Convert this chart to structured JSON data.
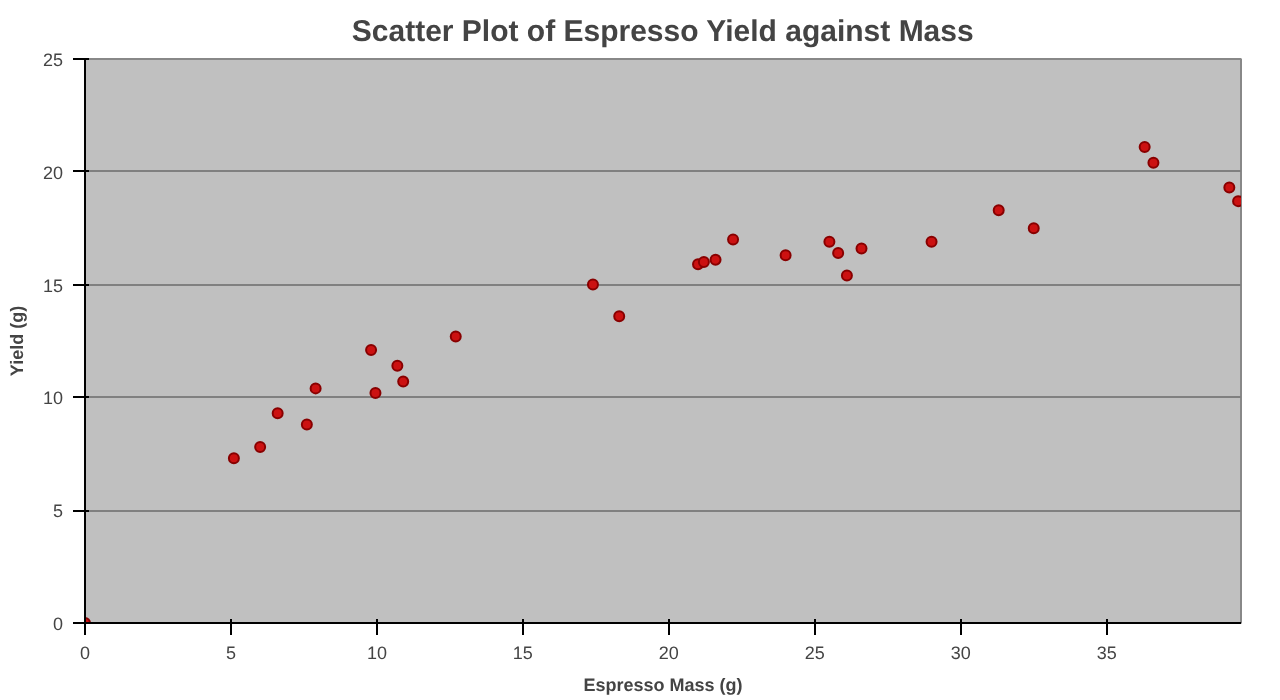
{
  "chart_data": {
    "type": "scatter",
    "title": "Scatter Plot of Espresso Yield against Mass",
    "xlabel": "Espresso Mass (g)",
    "ylabel": "Yield (g)",
    "x": [
      0,
      5.1,
      6.0,
      6.6,
      7.6,
      7.9,
      9.8,
      9.95,
      10.7,
      10.9,
      12.7,
      17.4,
      18.3,
      21.0,
      21.2,
      21.6,
      22.2,
      24.0,
      25.5,
      25.8,
      26.1,
      26.6,
      29.0,
      31.3,
      32.5,
      36.3,
      36.6,
      39.2,
      39.5
    ],
    "series": [
      {
        "color": "#cc1111",
        "values": [
          0,
          7.3,
          7.8,
          9.3,
          8.8,
          10.4,
          12.1,
          10.2,
          11.4,
          10.7,
          12.7,
          15.0,
          13.6,
          15.9,
          16.0,
          16.1,
          17.0,
          16.3,
          16.9,
          16.4,
          15.4,
          16.6,
          16.9,
          18.3,
          17.5,
          21.1,
          20.4,
          19.3,
          18.7
        ]
      }
    ],
    "xlim": [
      0,
      39.6
    ],
    "ylim": [
      0,
      25
    ],
    "xticks": [
      0,
      5,
      10,
      15,
      20,
      25,
      30,
      35
    ],
    "yticks": [
      0,
      5,
      10,
      15,
      20,
      25
    ],
    "grid": "y",
    "marker": "circle"
  }
}
